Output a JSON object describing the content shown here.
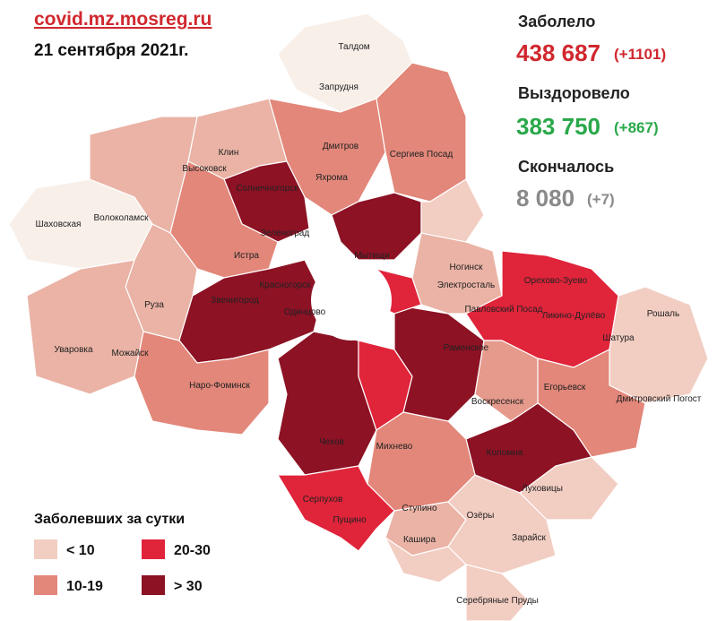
{
  "header": {
    "source": "covid.mz.mosreg.ru",
    "date": "21 сентября 2021г."
  },
  "stats": [
    {
      "label": "Заболело",
      "total": "438 687",
      "change": "(+1101)",
      "color": "#d0282e"
    },
    {
      "label": "Выздоровело",
      "total": "383 750",
      "change": "(+867)",
      "color": "#2aa84a"
    },
    {
      "label": "Скончалось",
      "total": "8 080",
      "change": "(+7)",
      "color": "#8a8a8a"
    }
  ],
  "legend": {
    "title": "Заболевших за сутки",
    "items": [
      {
        "label": "< 10",
        "color": "#f2cdc2"
      },
      {
        "label": "10-19",
        "color": "#e2877a"
      },
      {
        "label": "20-30",
        "color": "#e0243a"
      },
      {
        "label": "> 30",
        "color": "#8c1224"
      }
    ]
  },
  "map": {
    "labels": [
      "Талдом",
      "Запрудня",
      "Дмитров",
      "Сергиев Посад",
      "Яхрома",
      "Клин",
      "Высоковск",
      "Солнечногорск",
      "Шаховская",
      "Волоколамск",
      "Зеленоград",
      "Мытищи",
      "Истра",
      "Ногинск",
      "Электросталь",
      "Орехово-Зуево",
      "Красногорск",
      "Звенигород",
      "Одинцово",
      "Павловский Посад",
      "Ликино-Дулёво",
      "Рошаль",
      "Руза",
      "Шатура",
      "Раменское",
      "Уваровка",
      "Можайск",
      "Наро-Фоминск",
      "Воскресенск",
      "Егорьевск",
      "Дмитровский Погост",
      "Чехов",
      "Михнево",
      "Коломна",
      "Серпухов",
      "Пущино",
      "Ступино",
      "Луховицы",
      "Озёры",
      "Кашира",
      "Зарайск",
      "Серебряные Пруды"
    ]
  }
}
